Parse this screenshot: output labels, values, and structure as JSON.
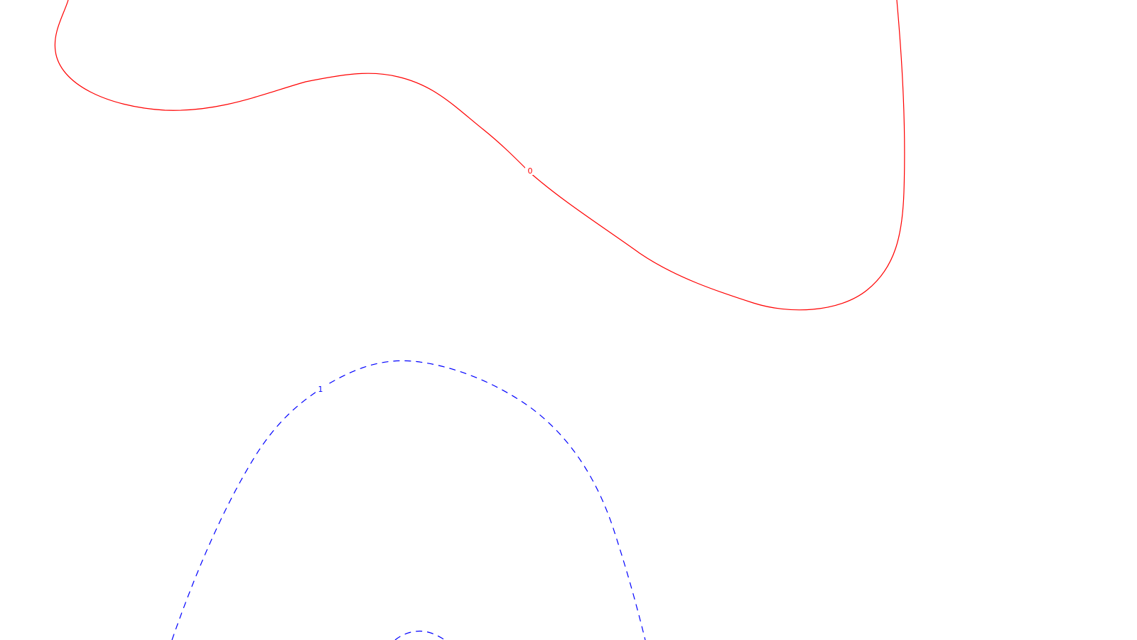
{
  "chart_data": {
    "type": "contour",
    "title": "",
    "xlabel": "",
    "ylabel": "",
    "grid": false,
    "legend": "none",
    "series": [
      {
        "level": "0",
        "color": "#ff0000",
        "style": "solid",
        "label_text": "0"
      },
      {
        "level": "1",
        "color": "#0000ff",
        "style": "dashed",
        "label_text": "1"
      }
    ]
  }
}
